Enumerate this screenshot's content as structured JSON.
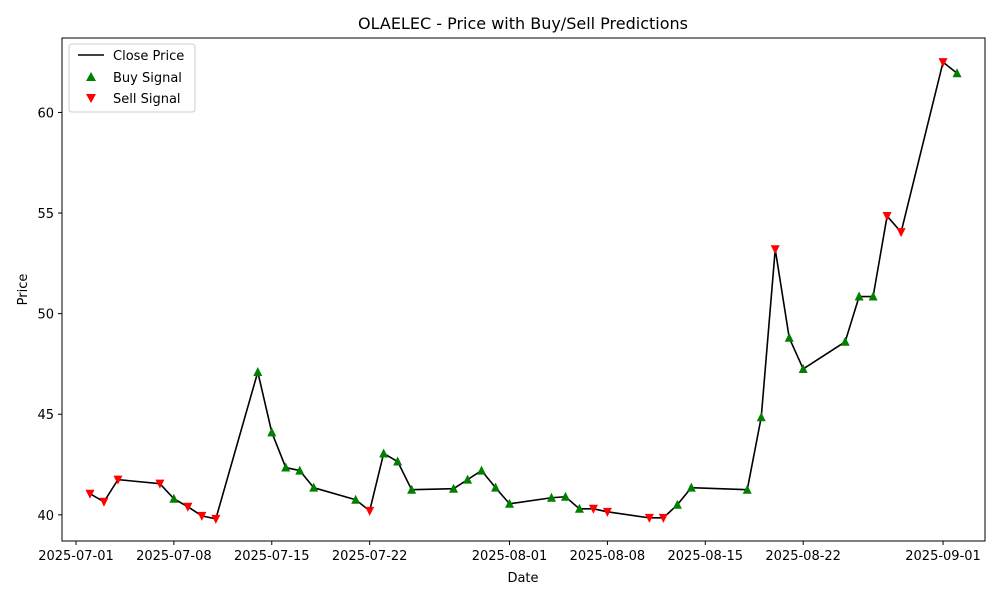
{
  "chart_data": {
    "type": "line",
    "title": "OLAELEC - Price with Buy/Sell Predictions",
    "xlabel": "Date",
    "ylabel": "Price",
    "xlim": [
      "2025-06-30",
      "2025-09-04"
    ],
    "ylim": [
      38.7,
      63.7
    ],
    "x_ticks": [
      "2025-07-01",
      "2025-07-08",
      "2025-07-15",
      "2025-07-22",
      "2025-08-01",
      "2025-08-08",
      "2025-08-15",
      "2025-08-22",
      "2025-09-01"
    ],
    "y_ticks": [
      40,
      45,
      50,
      55,
      60
    ],
    "grid": false,
    "legend": {
      "placement": "top-left",
      "entries": [
        "Close Price",
        "Buy Signal",
        "Sell Signal"
      ]
    },
    "colors": {
      "line": "#000000",
      "buy": "#008000",
      "sell": "#ff0000"
    },
    "series": [
      {
        "name": "Close Price",
        "points": [
          {
            "x": "2025-07-02",
            "y": 41.05,
            "signal": "sell"
          },
          {
            "x": "2025-07-03",
            "y": 40.65,
            "signal": "sell"
          },
          {
            "x": "2025-07-04",
            "y": 41.75,
            "signal": "sell"
          },
          {
            "x": "2025-07-07",
            "y": 41.55,
            "signal": "sell"
          },
          {
            "x": "2025-07-08",
            "y": 40.8,
            "signal": "buy"
          },
          {
            "x": "2025-07-09",
            "y": 40.4,
            "signal": "sell"
          },
          {
            "x": "2025-07-10",
            "y": 39.95,
            "signal": "sell"
          },
          {
            "x": "2025-07-11",
            "y": 39.8,
            "signal": "sell"
          },
          {
            "x": "2025-07-14",
            "y": 47.1,
            "signal": "buy"
          },
          {
            "x": "2025-07-15",
            "y": 44.1,
            "signal": "buy"
          },
          {
            "x": "2025-07-16",
            "y": 42.35,
            "signal": "buy"
          },
          {
            "x": "2025-07-17",
            "y": 42.2,
            "signal": "buy"
          },
          {
            "x": "2025-07-18",
            "y": 41.35,
            "signal": "buy"
          },
          {
            "x": "2025-07-21",
            "y": 40.75,
            "signal": "buy"
          },
          {
            "x": "2025-07-22",
            "y": 40.2,
            "signal": "sell"
          },
          {
            "x": "2025-07-23",
            "y": 43.05,
            "signal": "buy"
          },
          {
            "x": "2025-07-24",
            "y": 42.65,
            "signal": "buy"
          },
          {
            "x": "2025-07-25",
            "y": 41.25,
            "signal": "buy"
          },
          {
            "x": "2025-07-28",
            "y": 41.3,
            "signal": "buy"
          },
          {
            "x": "2025-07-29",
            "y": 41.75,
            "signal": "buy"
          },
          {
            "x": "2025-07-30",
            "y": 42.2,
            "signal": "buy"
          },
          {
            "x": "2025-07-31",
            "y": 41.35,
            "signal": "buy"
          },
          {
            "x": "2025-08-01",
            "y": 40.55,
            "signal": "buy"
          },
          {
            "x": "2025-08-04",
            "y": 40.85,
            "signal": "buy"
          },
          {
            "x": "2025-08-05",
            "y": 40.9,
            "signal": "buy"
          },
          {
            "x": "2025-08-06",
            "y": 40.3,
            "signal": "buy"
          },
          {
            "x": "2025-08-07",
            "y": 40.3,
            "signal": "sell"
          },
          {
            "x": "2025-08-08",
            "y": 40.15,
            "signal": "sell"
          },
          {
            "x": "2025-08-11",
            "y": 39.85,
            "signal": "sell"
          },
          {
            "x": "2025-08-12",
            "y": 39.85,
            "signal": "sell"
          },
          {
            "x": "2025-08-13",
            "y": 40.5,
            "signal": "buy"
          },
          {
            "x": "2025-08-14",
            "y": 41.35,
            "signal": "buy"
          },
          {
            "x": "2025-08-18",
            "y": 41.25,
            "signal": "buy"
          },
          {
            "x": "2025-08-19",
            "y": 44.85,
            "signal": "buy"
          },
          {
            "x": "2025-08-20",
            "y": 53.2,
            "signal": "sell"
          },
          {
            "x": "2025-08-21",
            "y": 48.8,
            "signal": "buy"
          },
          {
            "x": "2025-08-22",
            "y": 47.25,
            "signal": "buy"
          },
          {
            "x": "2025-08-25",
            "y": 48.6,
            "signal": "buy"
          },
          {
            "x": "2025-08-26",
            "y": 50.85,
            "signal": "buy"
          },
          {
            "x": "2025-08-27",
            "y": 50.85,
            "signal": "buy"
          },
          {
            "x": "2025-08-28",
            "y": 54.85,
            "signal": "sell"
          },
          {
            "x": "2025-08-29",
            "y": 54.05,
            "signal": "sell"
          },
          {
            "x": "2025-09-01",
            "y": 62.5,
            "signal": "sell"
          },
          {
            "x": "2025-09-02",
            "y": 61.95,
            "signal": "buy"
          }
        ]
      }
    ]
  }
}
